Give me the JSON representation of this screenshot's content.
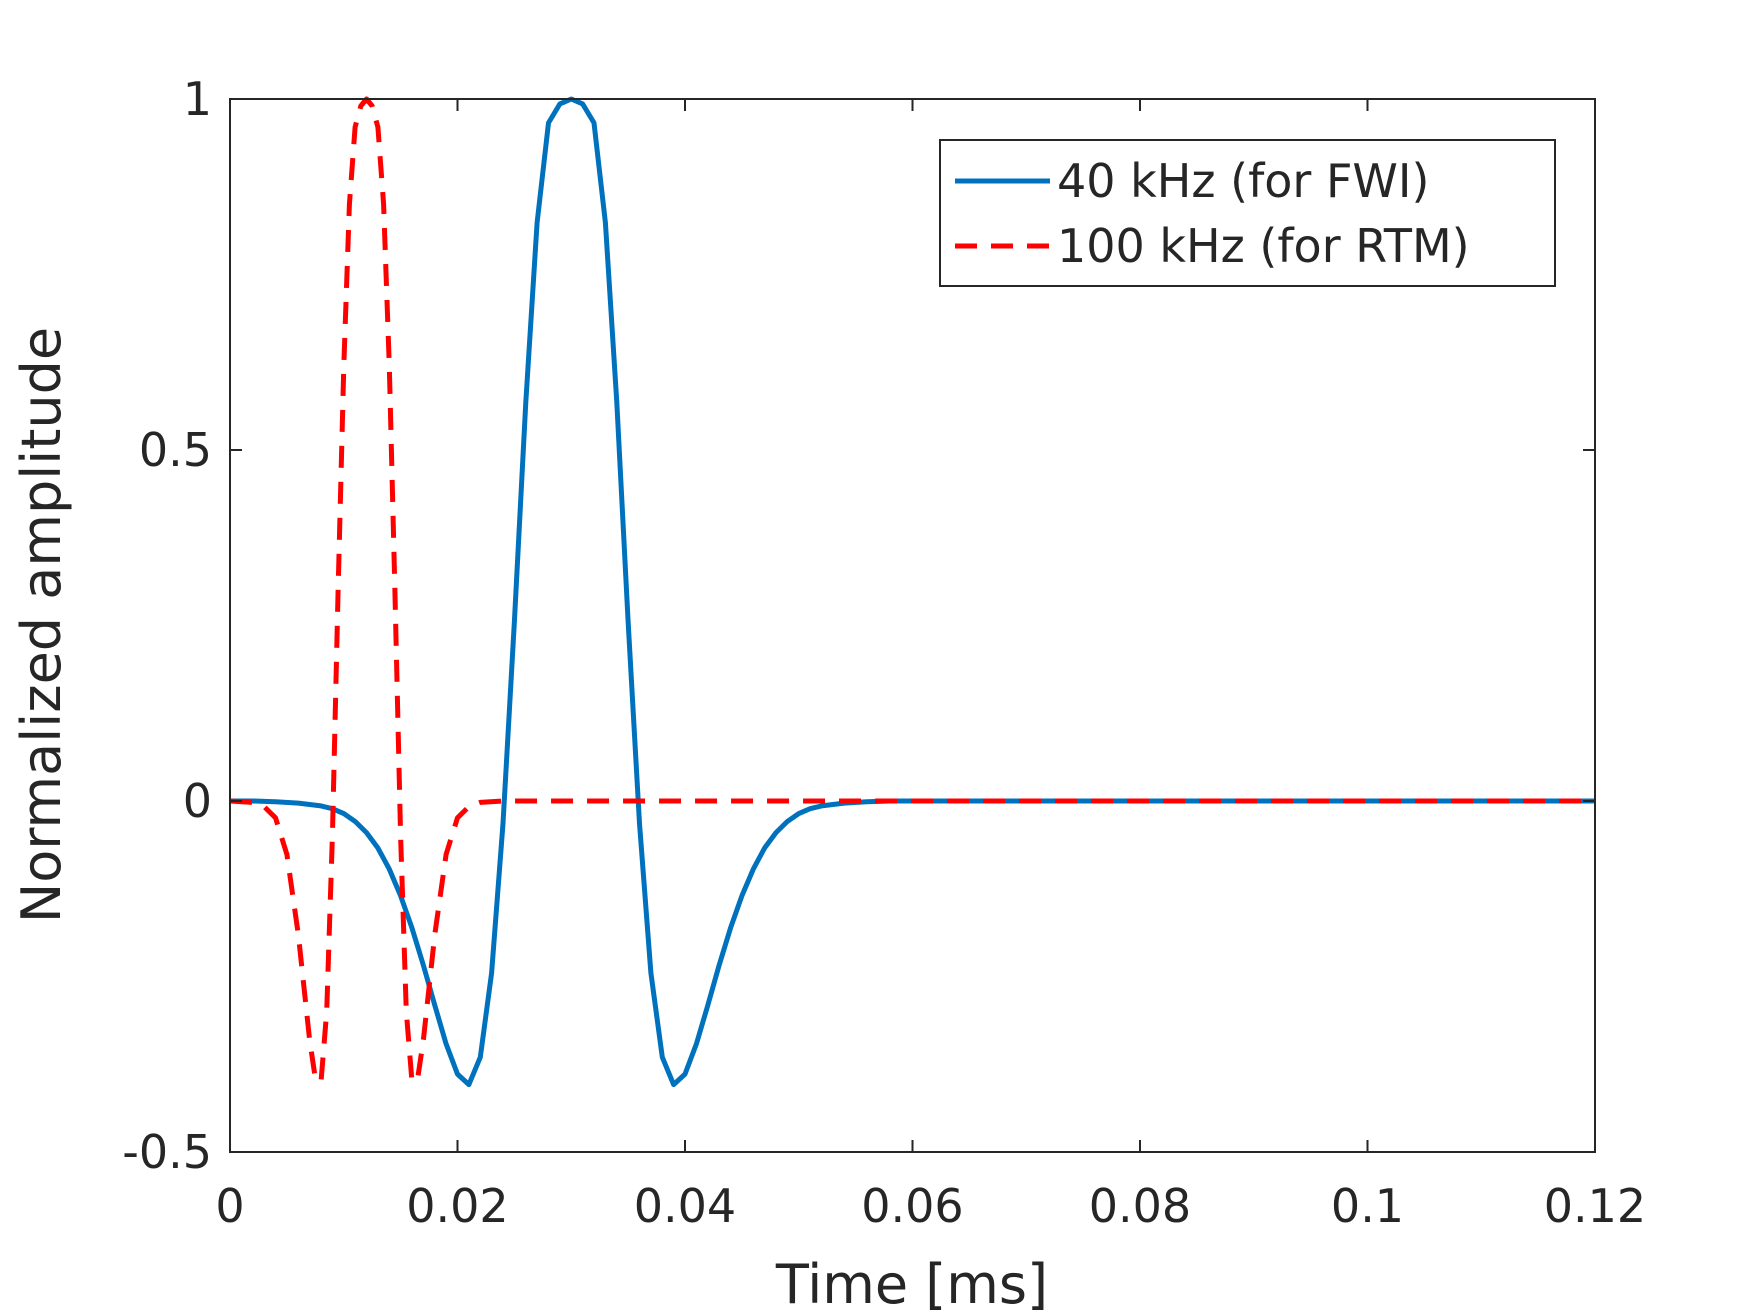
{
  "chart_data": {
    "type": "line",
    "xlabel": "Time [ms]",
    "ylabel": "Normalized amplitude",
    "xlim": [
      0,
      0.12
    ],
    "ylim": [
      -0.5,
      1
    ],
    "xticks": [
      0,
      0.02,
      0.04,
      0.06,
      0.08,
      0.1,
      0.12
    ],
    "xtick_labels": [
      "0",
      "0.02",
      "0.04",
      "0.06",
      "0.08",
      "0.1",
      "0.12"
    ],
    "yticks": [
      -0.5,
      0,
      0.5,
      1
    ],
    "ytick_labels": [
      "-0.5",
      "0",
      "0.5",
      "1"
    ],
    "grid": false,
    "legend_position": "top-right",
    "series": [
      {
        "name": "40 kHz (for FWI)",
        "style": "solid",
        "color": "#0072bd",
        "x": [
          0,
          0.002,
          0.004,
          0.006,
          0.008,
          0.009,
          0.01,
          0.011,
          0.012,
          0.013,
          0.014,
          0.015,
          0.016,
          0.017,
          0.018,
          0.019,
          0.02,
          0.021,
          0.022,
          0.023,
          0.024,
          0.025,
          0.026,
          0.027,
          0.028,
          0.029,
          0.03,
          0.031,
          0.032,
          0.033,
          0.034,
          0.035,
          0.036,
          0.037,
          0.038,
          0.039,
          0.04,
          0.041,
          0.042,
          0.043,
          0.044,
          0.045,
          0.046,
          0.047,
          0.048,
          0.049,
          0.05,
          0.051,
          0.052,
          0.054,
          0.056,
          0.058,
          0.06,
          0.07,
          0.08,
          0.09,
          0.1,
          0.11,
          0.12
        ],
        "y": [
          0,
          0,
          -0.001,
          -0.003,
          -0.007,
          -0.011,
          -0.018,
          -0.029,
          -0.045,
          -0.067,
          -0.097,
          -0.135,
          -0.181,
          -0.234,
          -0.291,
          -0.346,
          -0.389,
          -0.404,
          -0.365,
          -0.245,
          -0.032,
          0.256,
          0.568,
          0.824,
          0.966,
          0.993,
          1.0,
          0.993,
          0.966,
          0.824,
          0.568,
          0.256,
          -0.032,
          -0.245,
          -0.365,
          -0.404,
          -0.389,
          -0.346,
          -0.291,
          -0.234,
          -0.181,
          -0.135,
          -0.097,
          -0.067,
          -0.045,
          -0.029,
          -0.018,
          -0.011,
          -0.007,
          -0.003,
          -0.001,
          0,
          0,
          0,
          0,
          0,
          0,
          0,
          0
        ]
      },
      {
        "name": "100 kHz (for RTM)",
        "style": "dashed",
        "color": "#ff0000",
        "x": [
          0,
          0.002,
          0.003,
          0.004,
          0.005,
          0.006,
          0.007,
          0.0075,
          0.008,
          0.0085,
          0.009,
          0.0095,
          0.01,
          0.0105,
          0.011,
          0.0115,
          0.012,
          0.0125,
          0.013,
          0.0135,
          0.014,
          0.0145,
          0.015,
          0.0155,
          0.016,
          0.0165,
          0.017,
          0.018,
          0.019,
          0.02,
          0.021,
          0.022,
          0.024,
          0.026,
          0.03,
          0.04,
          0.06,
          0.08,
          0.1,
          0.12
        ],
        "y": [
          0,
          -0.002,
          -0.008,
          -0.024,
          -0.076,
          -0.19,
          -0.34,
          -0.395,
          -0.4,
          -0.3,
          -0.05,
          0.3,
          0.62,
          0.85,
          0.96,
          0.99,
          1.0,
          0.99,
          0.96,
          0.85,
          0.62,
          0.3,
          -0.05,
          -0.3,
          -0.4,
          -0.395,
          -0.34,
          -0.19,
          -0.076,
          -0.024,
          -0.008,
          -0.002,
          0,
          0,
          0,
          0,
          0,
          0,
          0,
          0
        ]
      }
    ]
  }
}
